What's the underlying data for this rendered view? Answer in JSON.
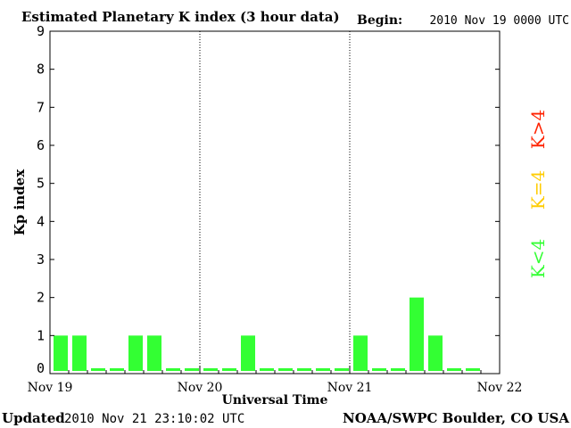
{
  "chart_data": {
    "type": "bar",
    "title": "Estimated Planetary K index (3 hour data)",
    "begin_label": "Begin:",
    "begin_value": "2010 Nov 19 0000 UTC",
    "xlabel": "Universal Time",
    "ylabel": "Kp index",
    "ylim": [
      0,
      9
    ],
    "yticks": [
      "0",
      "1",
      "2",
      "3",
      "4",
      "5",
      "6",
      "7",
      "8",
      "9"
    ],
    "x_date_labels": [
      "Nov 19",
      "Nov 20",
      "Nov 21",
      "Nov 22"
    ],
    "values": [
      1,
      1,
      0,
      0,
      1,
      1,
      0,
      0,
      0,
      0,
      1,
      0,
      0,
      0,
      0,
      0,
      1,
      0,
      0,
      2,
      1,
      0,
      0
    ],
    "bar_color": "#33ff33",
    "day_separators": "dotted",
    "grid": false,
    "legend": {
      "placement": "right",
      "items": [
        {
          "text": "K<4",
          "color": "#33ff33"
        },
        {
          "text": "K=4",
          "color": "#ffcc00"
        },
        {
          "text": "K>4",
          "color": "#ff2200"
        }
      ]
    }
  },
  "footer": {
    "updated_label": "Updated",
    "updated_value": "2010 Nov 21 23:10:02 UTC",
    "source": "NOAA/SWPC Boulder, CO USA"
  }
}
